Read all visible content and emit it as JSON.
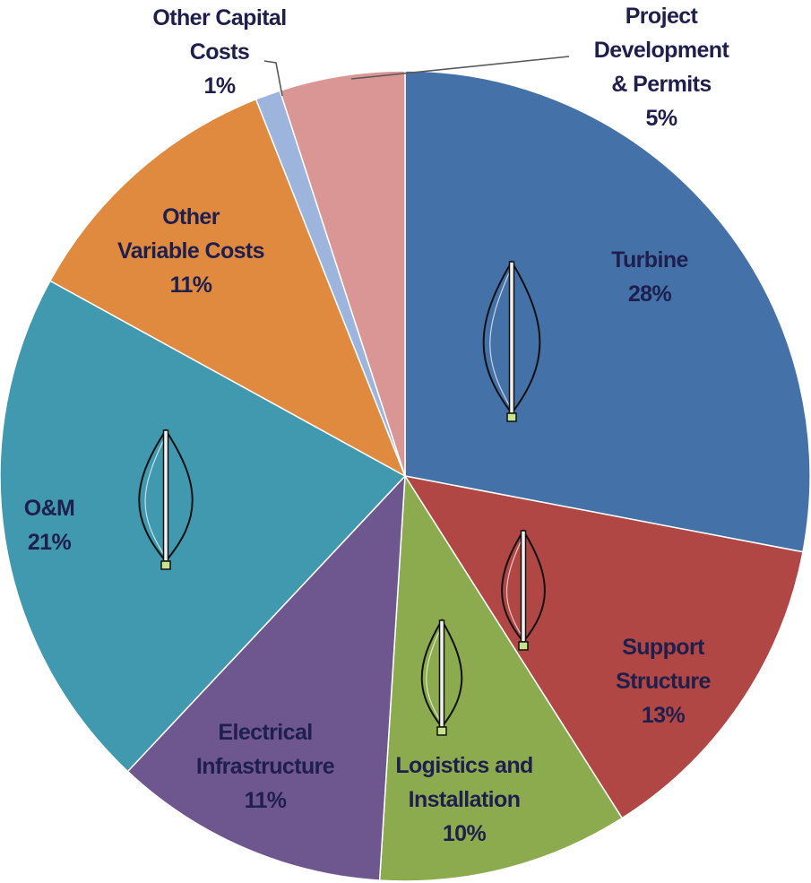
{
  "chart_data": {
    "type": "pie",
    "title": "",
    "start_angle_deg": 0,
    "direction": "clockwise",
    "slices": [
      {
        "name": "Turbine",
        "value": 28,
        "label_lines": [
          "Turbine",
          "28%"
        ],
        "color": "#4472A8",
        "text_color": "#1F1F4E",
        "icon": "wind-turbine-icon"
      },
      {
        "name": "Support Structure",
        "value": 13,
        "label_lines": [
          "Support",
          "Structure",
          "13%"
        ],
        "color": "#B04744",
        "text_color": "#1F1F4E",
        "icon": "wind-turbine-icon"
      },
      {
        "name": "Logistics and Installation",
        "value": 10,
        "label_lines": [
          "Logistics and",
          "Installation",
          "10%"
        ],
        "color": "#8CAB4E",
        "text_color": "#1F1F4E",
        "icon": "wind-turbine-icon"
      },
      {
        "name": "Electrical Infrastructure",
        "value": 11,
        "label_lines": [
          "Electrical",
          "Infrastructure",
          "11%"
        ],
        "color": "#6E568F",
        "text_color": "#1F1F4E",
        "icon": ""
      },
      {
        "name": "O&M",
        "value": 21,
        "label_lines": [
          "O&M",
          "21%"
        ],
        "color": "#4099AF",
        "text_color": "#1F1F4E",
        "icon": "wind-turbine-icon"
      },
      {
        "name": "Other Variable Costs",
        "value": 11,
        "label_lines": [
          "Other",
          "Variable Costs",
          "11%"
        ],
        "color": "#E08A3F",
        "text_color": "#1F1F4E",
        "icon": ""
      },
      {
        "name": "Other Capital Costs",
        "value": 1,
        "label_lines": [
          "Other Capital",
          "Costs",
          "1%"
        ],
        "color": "#9DB4DC",
        "text_color": "#1F1F4E",
        "icon": ""
      },
      {
        "name": "Project Development & Permits",
        "value": 5,
        "label_lines": [
          "Project",
          "Development",
          "& Permits",
          "5%"
        ],
        "color": "#D99694",
        "text_color": "#1F1F4E",
        "icon": ""
      }
    ]
  }
}
